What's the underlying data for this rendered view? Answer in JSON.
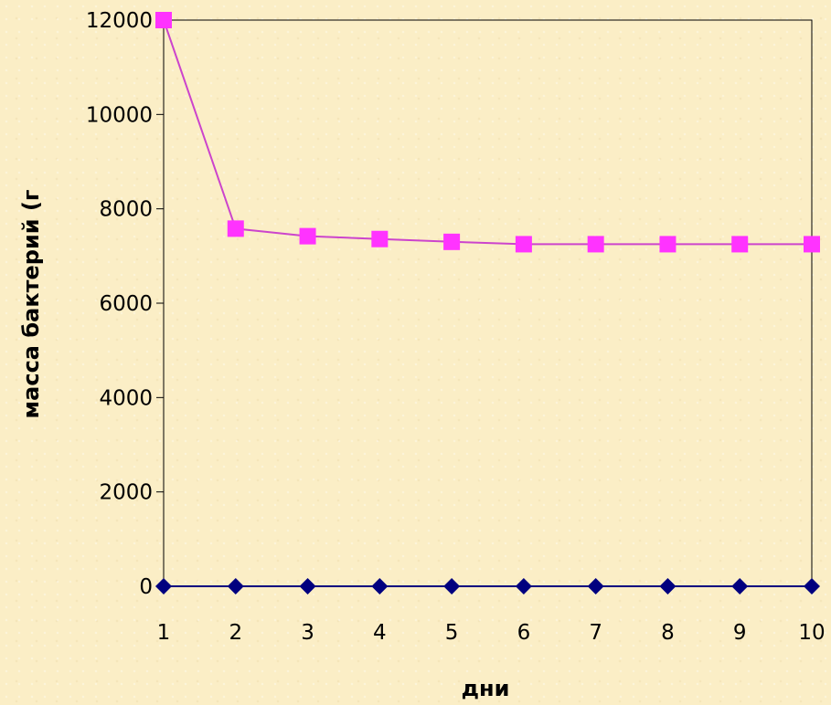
{
  "chart_data": {
    "type": "line",
    "xlabel": "дни",
    "ylabel": "масса бактерий (г",
    "x": [
      1,
      2,
      3,
      4,
      5,
      6,
      7,
      8,
      9,
      10
    ],
    "x_tick_labels": [
      "1",
      "2",
      "3",
      "4",
      "5",
      "6",
      "7",
      "8",
      "9",
      "10"
    ],
    "ylim": [
      0,
      12000
    ],
    "y_ticks": [
      0,
      2000,
      4000,
      6000,
      8000,
      10000,
      12000
    ],
    "y_tick_labels": [
      "0",
      "2000",
      "4000",
      "6000",
      "8000",
      "10000",
      "12000"
    ],
    "grid": false,
    "legend": "none",
    "series": [
      {
        "color": "#ff33ff",
        "line_color": "#cc44cc",
        "marker": "square",
        "values": [
          12000,
          7580,
          7420,
          7360,
          7300,
          7250,
          7250,
          7250,
          7250,
          7250
        ]
      },
      {
        "color": "#00007f",
        "line_color": "#00007f",
        "marker": "diamond",
        "values": [
          0,
          0,
          0,
          0,
          0,
          0,
          0,
          0,
          0,
          0
        ]
      }
    ]
  }
}
